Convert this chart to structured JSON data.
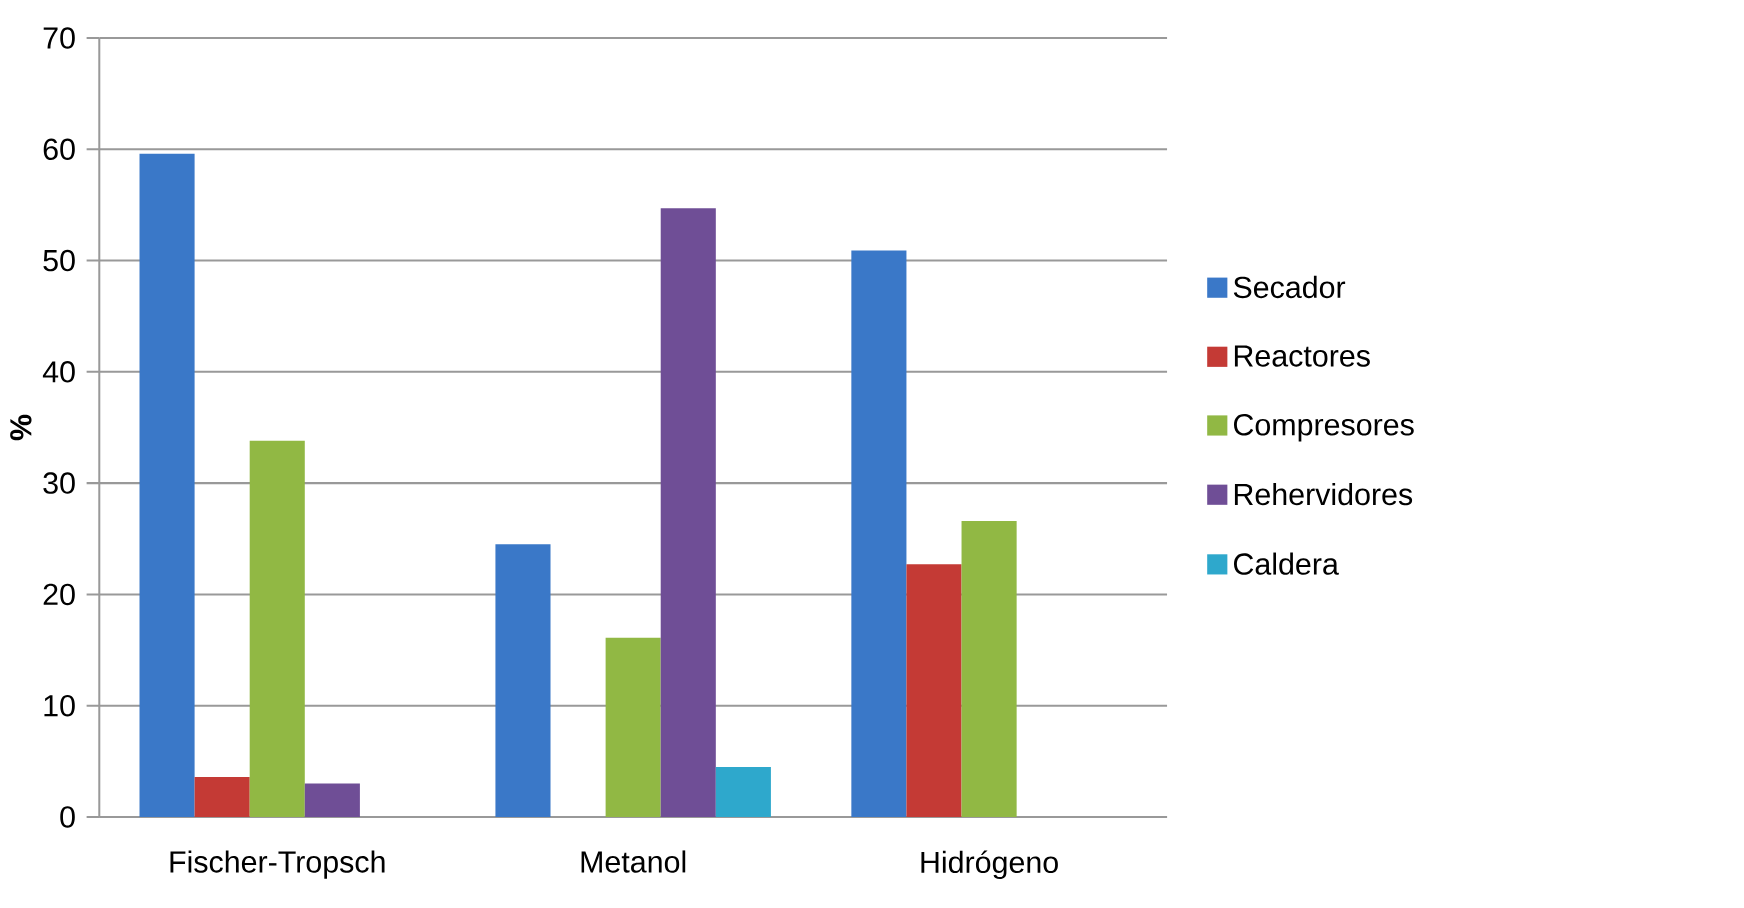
{
  "chart_data": {
    "type": "bar",
    "ylabel": "%",
    "categories": [
      "Fischer-Tropsch",
      "Metanol",
      "Hidrógeno"
    ],
    "series": [
      {
        "name": "Secador",
        "color": "#3a78c8",
        "values": [
          59.6,
          24.5,
          50.9
        ]
      },
      {
        "name": "Reactores",
        "color": "#c43a35",
        "values": [
          3.6,
          null,
          22.7
        ]
      },
      {
        "name": "Compresores",
        "color": "#91b844",
        "values": [
          33.8,
          16.1,
          26.6
        ]
      },
      {
        "name": "Rehervidores",
        "color": "#6f4e96",
        "values": [
          3.0,
          54.7,
          null
        ]
      },
      {
        "name": "Caldera",
        "color": "#2ea8cc",
        "values": [
          null,
          4.5,
          null
        ]
      }
    ],
    "ylim": [
      0,
      70
    ],
    "yticks": [
      0,
      10,
      20,
      30,
      40,
      50,
      60,
      70
    ],
    "grid": "y",
    "legend": "right"
  }
}
